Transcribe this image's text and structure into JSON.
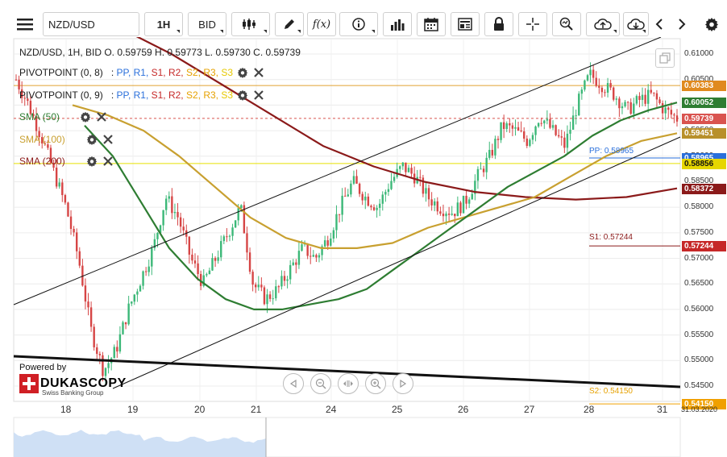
{
  "toolbar": {
    "symbol": "NZD/USD",
    "timeframe": "1H",
    "price_side": "BID"
  },
  "info_line": "NZD/USD, 1H, BID   O. 0.59759 H. 0.59773 L. 0.59730 C. 0.59739",
  "indicators": [
    {
      "name": "PIVOTPOINT (0, 8)",
      "levels": ": PP, R1, S1, R2, S2, R3, S3",
      "color": "#1a1a1a"
    },
    {
      "name": "PIVOTPOINT (0, 9)",
      "levels": ": PP, R1, S1, R2, S2, R3, S3",
      "color": "#1a1a1a"
    },
    {
      "name": "SMA (50)",
      "color": "#2e7d32"
    },
    {
      "name": "SMA (100)",
      "color": "#c8a030"
    },
    {
      "name": "SMA (200)",
      "color": "#8b1a1a"
    }
  ],
  "pivot_level_colors": {
    "PP": "#2a6fdb",
    "R1": "#2a6fdb",
    "S1": "#c62828",
    "R2": "#c62828",
    "S2": "#e6a100",
    "R3": "#e6a100",
    "S3": "#e6c800"
  },
  "y_axis": {
    "ticks": [
      "0.61000",
      "0.60500",
      "0.60000",
      "0.59500",
      "0.59000",
      "0.58500",
      "0.58000",
      "0.57500",
      "0.57000",
      "0.56500",
      "0.56000",
      "0.55500",
      "0.55000",
      "0.54500"
    ]
  },
  "price_tags": [
    {
      "value": "0.60383",
      "color": "#e08a1e"
    },
    {
      "value": "0.60052",
      "color": "#2e7d32"
    },
    {
      "value": "0.59739",
      "color": "#d9534f"
    },
    {
      "value": "0.59451",
      "color": "#b8902a"
    },
    {
      "value": "0.58965",
      "color": "#2a6fdb"
    },
    {
      "value": "0.58856",
      "color": "#e6d600"
    },
    {
      "value": "0.58372",
      "color": "#8b1a1a"
    },
    {
      "value": "0.57244",
      "color": "#c62828"
    },
    {
      "value": "0.54150",
      "color": "#f0a000"
    }
  ],
  "level_labels": {
    "pp": "PP: 0.58965",
    "s1": "S1: 0.57244",
    "s2": "S2: 0.54150"
  },
  "x_axis": {
    "labels": [
      "18",
      "19",
      "20",
      "21",
      "24",
      "25",
      "26",
      "27",
      "28",
      "31"
    ],
    "date": "31.03.2020"
  },
  "branding": {
    "powered_by": "Powered by",
    "name": "DUKASCOPY",
    "sub": "Swiss Banking Group"
  },
  "colors": {
    "sma50": "#2e7d32",
    "sma100": "#c8a030",
    "sma200": "#8b1a1a",
    "candle_up": "#3cb878",
    "candle_down": "#d64545",
    "resistance": "#e0a030",
    "current": "#d9534f"
  },
  "chart_data": {
    "type": "candlestick",
    "x": [
      "18",
      "19",
      "20",
      "21",
      "24",
      "25",
      "26",
      "27",
      "28",
      "31"
    ],
    "close_path": [
      0.605,
      0.6,
      0.594,
      0.587,
      0.58,
      0.57,
      0.556,
      0.548,
      0.552,
      0.56,
      0.566,
      0.572,
      0.582,
      0.578,
      0.57,
      0.565,
      0.57,
      0.575,
      0.58,
      0.565,
      0.562,
      0.564,
      0.568,
      0.572,
      0.57,
      0.574,
      0.58,
      0.585,
      0.582,
      0.58,
      0.585,
      0.588,
      0.586,
      0.582,
      0.58,
      0.579,
      0.581,
      0.586,
      0.59,
      0.596,
      0.595,
      0.593,
      0.598,
      0.595,
      0.592,
      0.6,
      0.606,
      0.604,
      0.602,
      0.599,
      0.601,
      0.602,
      0.599,
      0.5974
    ],
    "sma50": [
      0.596,
      0.59,
      0.581,
      0.572,
      0.566,
      0.562,
      0.56,
      0.56,
      0.561,
      0.562,
      0.564,
      0.568,
      0.572,
      0.576,
      0.58,
      0.584,
      0.587,
      0.59,
      0.594,
      0.597,
      0.599,
      0.6005
    ],
    "sma100": [
      0.6,
      0.598,
      0.595,
      0.59,
      0.584,
      0.578,
      0.574,
      0.572,
      0.572,
      0.573,
      0.576,
      0.578,
      0.58,
      0.582,
      0.586,
      0.59,
      0.593,
      0.5945
    ],
    "sma200": [
      0.615,
      0.61,
      0.604,
      0.598,
      0.592,
      0.588,
      0.585,
      0.583,
      0.582,
      0.5815,
      0.582,
      0.5837
    ],
    "ylim": [
      0.542,
      0.613
    ]
  }
}
